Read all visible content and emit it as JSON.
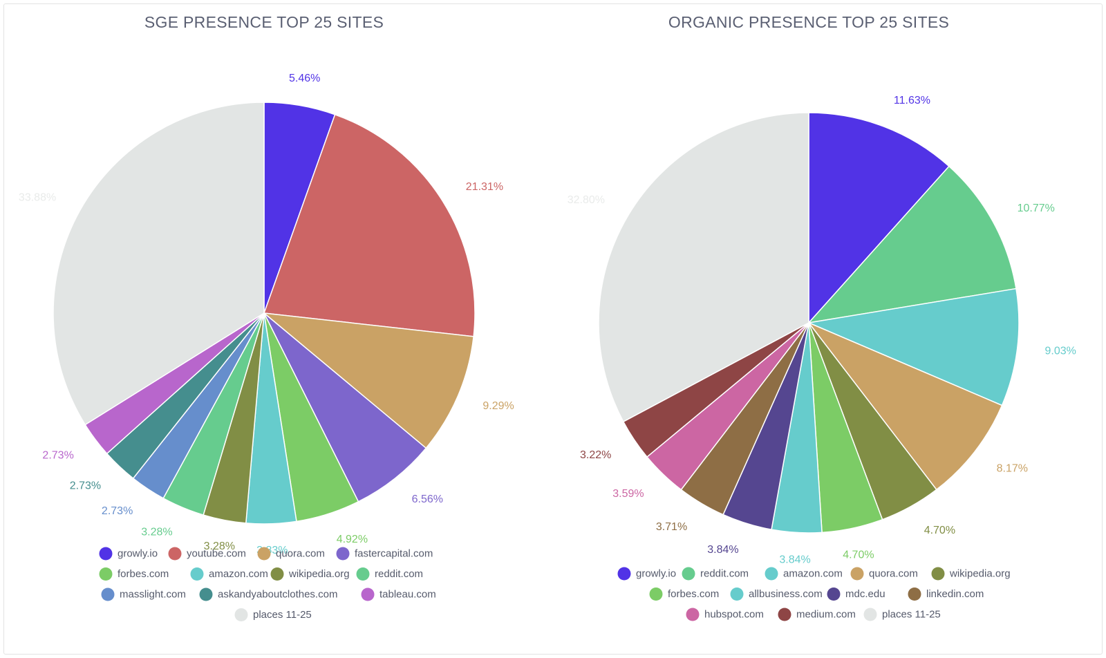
{
  "chart_data": [
    {
      "type": "pie",
      "title": "SGE PRESENCE TOP 25 SITES",
      "unit": "%",
      "legend_position": "bottom",
      "categories": [
        "growly.io",
        "youtube.com",
        "quora.com",
        "fastercapital.com",
        "forbes.com",
        "amazon.com",
        "wikipedia.org",
        "reddit.com",
        "masslight.com",
        "askandyaboutclothes.com",
        "tableau.com",
        "places 11-25"
      ],
      "values": [
        5.46,
        21.31,
        9.29,
        6.56,
        4.92,
        3.83,
        3.28,
        3.28,
        2.73,
        2.73,
        2.73,
        33.88
      ],
      "labels": [
        "5.46%",
        "21.31%",
        "9.29%",
        "6.56%",
        "4.92%",
        "3.83%",
        "3.28%",
        "3.28%",
        "2.73%",
        "2.73%",
        "2.73%",
        "33.88%"
      ],
      "colors": [
        "#5133e6",
        "#cc6565",
        "#caa265",
        "#7d66cc",
        "#7ccc66",
        "#66cccc",
        "#818e45",
        "#66cc8e",
        "#668ecc",
        "#458e8e",
        "#b866cc",
        "#e2e5e4"
      ],
      "label_colors": [
        "#5133e6",
        "#cc6565",
        "#caa265",
        "#7d66cc",
        "#7ccc66",
        "#66cccc",
        "#818e45",
        "#66cc8e",
        "#668ecc",
        "#458e8e",
        "#b866cc",
        "#e9ebea"
      ]
    },
    {
      "type": "pie",
      "title": "ORGANIC PRESENCE TOP 25 SITES",
      "unit": "%",
      "legend_position": "bottom",
      "categories": [
        "growly.io",
        "reddit.com",
        "amazon.com",
        "quora.com",
        "wikipedia.org",
        "forbes.com",
        "allbusiness.com",
        "mdc.edu",
        "linkedin.com",
        "hubspot.com",
        "medium.com",
        "places 11-25"
      ],
      "values": [
        11.63,
        10.77,
        9.03,
        8.17,
        4.7,
        4.7,
        3.84,
        3.84,
        3.71,
        3.59,
        3.22,
        32.8
      ],
      "labels": [
        "11.63%",
        "10.77%",
        "9.03%",
        "8.17%",
        "4.70%",
        "4.70%",
        "3.84%",
        "3.84%",
        "3.71%",
        "3.59%",
        "3.22%",
        "32.80%"
      ],
      "colors": [
        "#5133e6",
        "#66cc8e",
        "#66cccc",
        "#caa265",
        "#818e45",
        "#7ccc66",
        "#66cccc",
        "#554690",
        "#8e6e45",
        "#cc66a3",
        "#8e4545",
        "#e2e5e4"
      ],
      "label_colors": [
        "#5133e6",
        "#66cc8e",
        "#66cccc",
        "#caa265",
        "#818e45",
        "#7ccc66",
        "#66cccc",
        "#554690",
        "#8e6e45",
        "#cc66a3",
        "#8e4545",
        "#e9ebea"
      ]
    }
  ]
}
